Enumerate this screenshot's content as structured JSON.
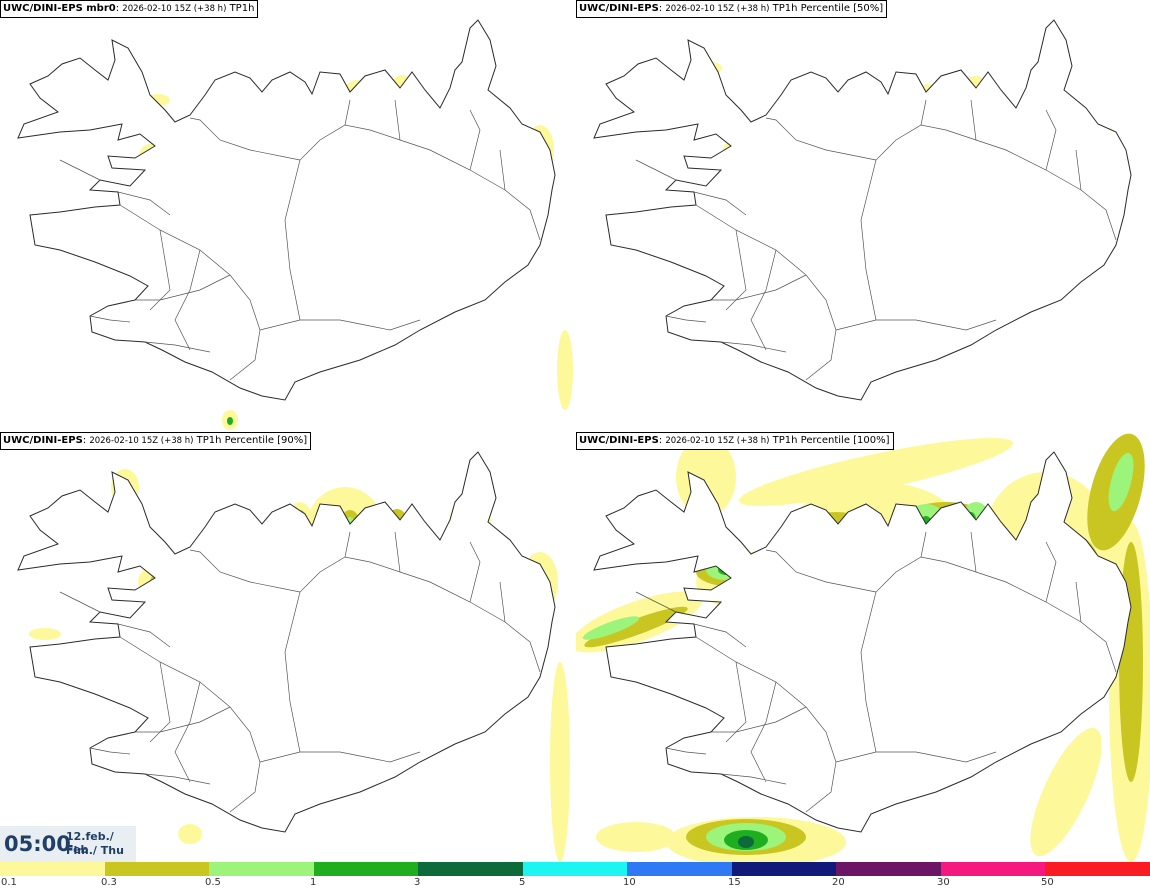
{
  "panels": [
    {
      "title_bold": "UWC/DINI-EPS mbr0",
      "run": "2026-02-10 15Z (+38 h)",
      "field": "TP1h"
    },
    {
      "title_bold": "UWC/DINI-EPS",
      "run": "2026-02-10 15Z (+38 h)",
      "field": "TP1h Percentile [50%]"
    },
    {
      "title_bold": "UWC/DINI-EPS",
      "run": "2026-02-10 15Z (+38 h)",
      "field": "TP1h Percentile [90%]"
    },
    {
      "title_bold": "UWC/DINI-EPS",
      "run": "2026-02-10 15Z (+38 h)",
      "field": "TP1h Percentile [100%]"
    }
  ],
  "valid_time": {
    "time": "05:00",
    "date_line1": "12.feb./ Feb",
    "date_line2": "Fim./ Thu"
  },
  "legend": {
    "colors": [
      "#fdf99a",
      "#c9c622",
      "#9cf57a",
      "#1fae1f",
      "#0d6a3a",
      "#1cf5f1",
      "#2f79f5",
      "#111a78",
      "#6d1565",
      "#f5187e",
      "#fa1c23"
    ],
    "labels": [
      "0.1",
      "0.3",
      "0.5",
      "1",
      "3",
      "5",
      "10",
      "15",
      "20",
      "30",
      "50"
    ]
  }
}
